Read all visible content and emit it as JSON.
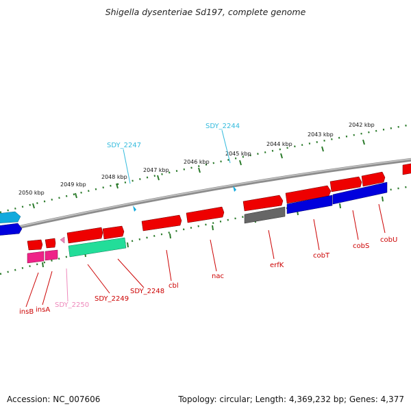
{
  "title": "Shigella dysenteriae Sd197, complete genome",
  "footer": {
    "accession": "Accession: NC_007606",
    "summary": "Topology: circular; Length: 4,369,232 bp; Genes: 4,377"
  },
  "scale_labels": [
    "2050 kbp",
    "2049 kbp",
    "2048 kbp",
    "2047 kbp",
    "2046 kbp",
    "2045 kbp",
    "2044 kbp",
    "2043 kbp",
    "2042 kbp"
  ],
  "gene_labels": [
    {
      "text": "SDY_2247",
      "color": "#33bbdd"
    },
    {
      "text": "SDY_2244",
      "color": "#33bbdd"
    },
    {
      "text": "insB",
      "color": "#cc0000"
    },
    {
      "text": "insA",
      "color": "#cc0000"
    },
    {
      "text": "SDY_2250",
      "color": "#ee88bb"
    },
    {
      "text": "SDY_2249",
      "color": "#cc0000"
    },
    {
      "text": "SDY_2248",
      "color": "#cc0000"
    },
    {
      "text": "cbl",
      "color": "#cc0000"
    },
    {
      "text": "nac",
      "color": "#cc0000"
    },
    {
      "text": "erfK",
      "color": "#cc0000"
    },
    {
      "text": "cobT",
      "color": "#cc0000"
    },
    {
      "text": "cobS",
      "color": "#cc0000"
    },
    {
      "text": "cobU",
      "color": "#cc0000"
    }
  ],
  "colors": {
    "backbone": "#888888",
    "tick": "#2a7a2a",
    "gene_red": "#ee0000",
    "gene_blue": "#0000dd",
    "gene_cyan": "#11aadd",
    "gene_green": "#22dd99",
    "gene_pink": "#ee2288",
    "gene_gray": "#666666"
  }
}
